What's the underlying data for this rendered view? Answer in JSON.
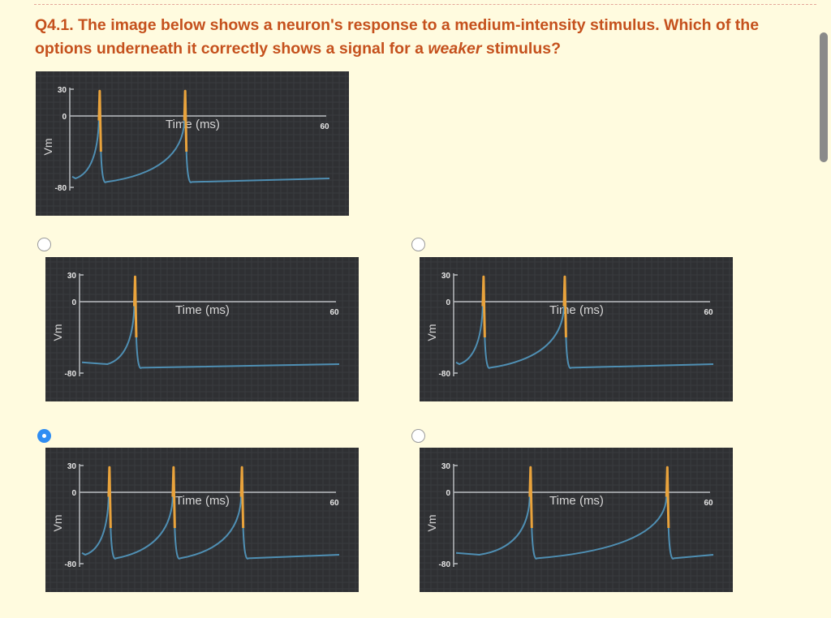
{
  "question": {
    "prefix": "Q4.1. The image below shows a neuron's response to a medium-intensity stimulus. Which of the options underneath it correctly shows a signal for a",
    "emphasis": "weaker",
    "suffix": "stimulus?"
  },
  "options": [
    {
      "id": "option-a",
      "selected": false
    },
    {
      "id": "option-b",
      "selected": false
    },
    {
      "id": "option-c",
      "selected": true
    },
    {
      "id": "option-d",
      "selected": false
    }
  ],
  "colors": {
    "question_text": "#c5511d",
    "chart_background": "#2f3033",
    "spike": "#e9a33c",
    "baseline_trace": "#4f8fb3",
    "axis": "#b9bcc0",
    "selected_radio": "#2f8df3"
  },
  "chart_data": [
    {
      "id": "reference",
      "type": "line",
      "title": "",
      "xlabel": "Time (ms)",
      "ylabel": "Vm",
      "xlim": [
        0,
        60
      ],
      "ylim": [
        -80,
        30
      ],
      "y_ticks": [
        "30",
        "0",
        "-80"
      ],
      "x_ticks": [
        "60"
      ],
      "spike_times_ms": [
        7,
        27
      ],
      "spike_rise_ms": 6.5
    },
    {
      "id": "option-a",
      "type": "line",
      "title": "",
      "xlabel": "Time (ms)",
      "ylabel": "Vm",
      "xlim": [
        0,
        60
      ],
      "ylim": [
        -80,
        30
      ],
      "y_ticks": [
        "30",
        "0",
        "-80"
      ],
      "x_ticks": [
        "60"
      ],
      "spike_times_ms": [
        13
      ],
      "spike_rise_ms": 6.5
    },
    {
      "id": "option-b",
      "type": "line",
      "title": "",
      "xlabel": "Time (ms)",
      "ylabel": "Vm",
      "xlim": [
        0,
        60
      ],
      "ylim": [
        -80,
        30
      ],
      "y_ticks": [
        "30",
        "0",
        "-80"
      ],
      "x_ticks": [
        "60"
      ],
      "spike_times_ms": [
        7,
        26
      ],
      "spike_rise_ms": 6.5
    },
    {
      "id": "option-c",
      "type": "line",
      "title": "",
      "xlabel": "Time (ms)",
      "ylabel": "Vm",
      "xlim": [
        0,
        60
      ],
      "ylim": [
        -80,
        30
      ],
      "y_ticks": [
        "30",
        "0",
        "-80"
      ],
      "x_ticks": [
        "60"
      ],
      "spike_times_ms": [
        7,
        22,
        38
      ],
      "spike_rise_ms": 6.5
    },
    {
      "id": "option-d",
      "type": "line",
      "title": "",
      "xlabel": "Time (ms)",
      "ylabel": "Vm",
      "xlim": [
        0,
        60
      ],
      "ylim": [
        -80,
        30
      ],
      "y_ticks": [
        "30",
        "0",
        "-80"
      ],
      "x_ticks": [
        "60"
      ],
      "spike_times_ms": [
        18,
        50
      ],
      "spike_rise_ms": 12
    }
  ]
}
